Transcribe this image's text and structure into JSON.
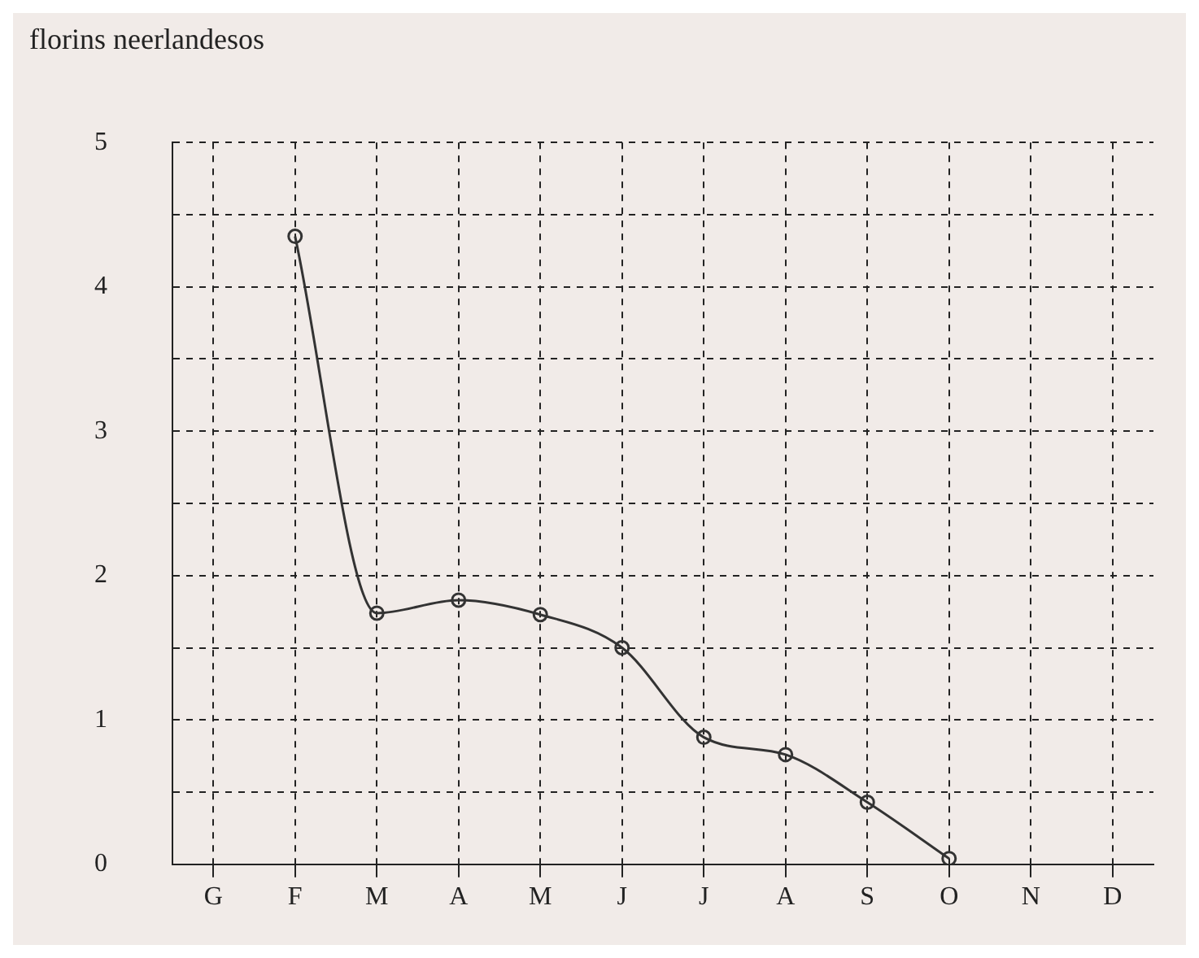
{
  "chart_data": {
    "type": "line",
    "ylabel": "florins neerlandesos",
    "categories": [
      "G",
      "F",
      "M",
      "A",
      "M",
      "J",
      "J",
      "A",
      "S",
      "O",
      "N",
      "D"
    ],
    "series": [
      {
        "color": "#333333",
        "values": [
          null,
          4.35,
          1.74,
          1.83,
          1.73,
          1.5,
          0.88,
          0.76,
          0.43,
          0.04,
          null,
          null
        ]
      }
    ],
    "ylim": [
      0,
      5
    ],
    "yticks": [
      {
        "value": 0,
        "label": "0"
      },
      {
        "value": 0.5,
        "label": null
      },
      {
        "value": 1,
        "label": "1"
      },
      {
        "value": 1.5,
        "label": null
      },
      {
        "value": 2,
        "label": "2"
      },
      {
        "value": 2.5,
        "label": null
      },
      {
        "value": 3,
        "label": "3"
      },
      {
        "value": 3.5,
        "label": null
      },
      {
        "value": 4,
        "label": "4"
      },
      {
        "value": 4.5,
        "label": null
      },
      {
        "value": 5,
        "label": "5"
      }
    ],
    "grid": true,
    "legend": false,
    "marker": "circle",
    "line_style": "solid"
  }
}
